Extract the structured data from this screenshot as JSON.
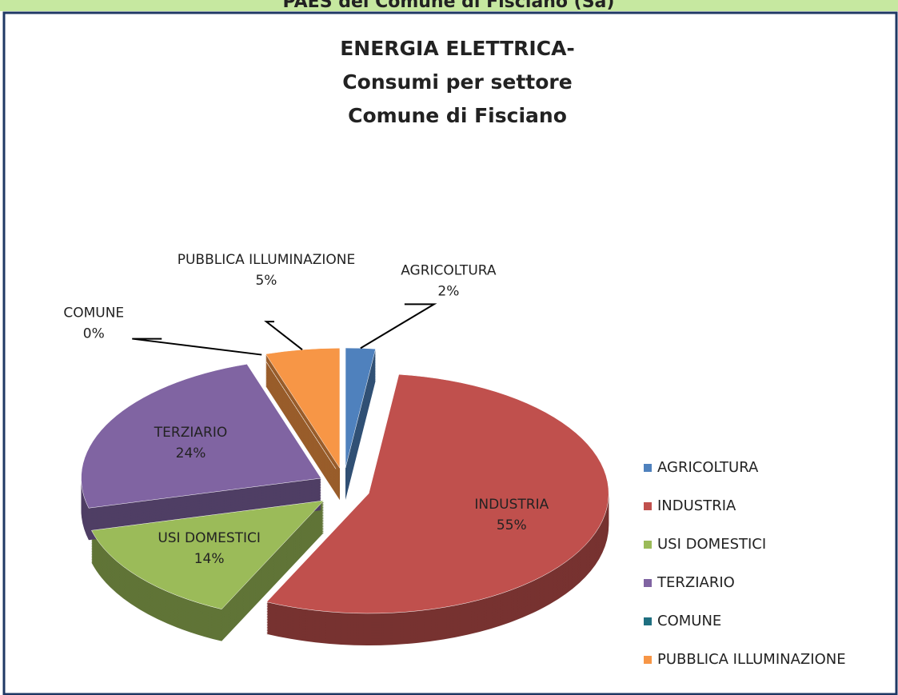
{
  "banner": "PAES del Comune di Fisciano (Sa)",
  "chart_data": {
    "type": "pie",
    "title": [
      "ENERGIA ELETTRICA-",
      "Consumi per settore",
      "Comune di Fisciano"
    ],
    "categories": [
      "AGRICOLTURA",
      "INDUSTRIA",
      "USI DOMESTICI",
      "TERZIARIO",
      "COMUNE",
      "PUBBLICA ILLUMINAZIONE"
    ],
    "values": [
      2,
      55,
      14,
      24,
      0,
      5
    ],
    "value_labels": [
      "2%",
      "55%",
      "14%",
      "24%",
      "0%",
      "5%"
    ],
    "colors": [
      "#4f81bd",
      "#c0504d",
      "#9bbb59",
      "#8064a2",
      "#1f6f80",
      "#f79646"
    ],
    "legend": "right"
  }
}
